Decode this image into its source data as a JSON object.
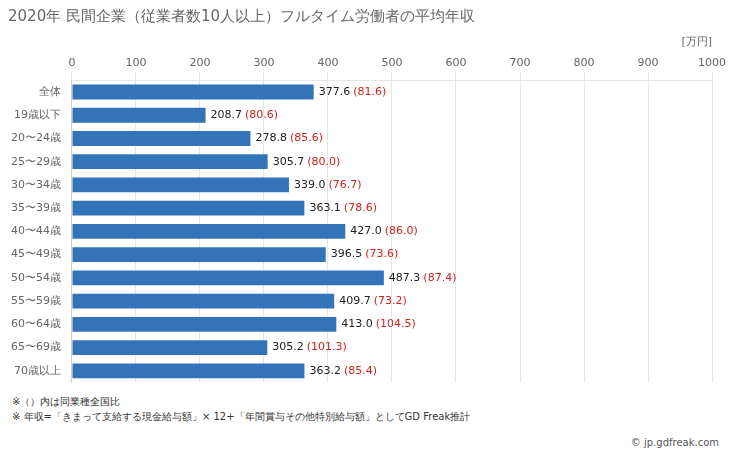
{
  "chart_data": {
    "type": "bar",
    "orientation": "horizontal",
    "title": "2020年 民間企業（従業者数10人以上）フルタイム労働者の平均年収",
    "xlabel": "[万円]",
    "categories": [
      "全体",
      "19歳以下",
      "20〜24歳",
      "25〜29歳",
      "30〜34歳",
      "35〜39歳",
      "40〜44歳",
      "45〜49歳",
      "50〜54歳",
      "55〜59歳",
      "60〜64歳",
      "65〜69歳",
      "70歳以上"
    ],
    "values": [
      377.6,
      208.7,
      278.8,
      305.7,
      339.0,
      363.1,
      427.0,
      396.5,
      487.3,
      409.7,
      413.0,
      305.2,
      363.2
    ],
    "value_labels": [
      "377.6",
      "208.7",
      "278.8",
      "305.7",
      "339.0",
      "363.1",
      "427.0",
      "396.5",
      "487.3",
      "409.7",
      "413.0",
      "305.2",
      "363.2"
    ],
    "data_labels": true,
    "ratios": {
      "color": "#cc2222",
      "values": [
        81.6,
        80.6,
        85.6,
        80.0,
        76.7,
        78.6,
        86.0,
        73.6,
        87.4,
        73.2,
        104.5,
        101.3,
        85.4
      ],
      "value_labels": [
        "(81.6)",
        "(80.6)",
        "(85.6)",
        "(80.0)",
        "(76.7)",
        "(78.6)",
        "(86.0)",
        "(73.6)",
        "(87.4)",
        "(73.2)",
        "(104.5)",
        "(101.3)",
        "(85.4)"
      ]
    },
    "color": "#3374b8",
    "xlim": [
      0,
      1000
    ],
    "xticks": [
      0,
      100,
      200,
      300,
      400,
      500,
      600,
      700,
      800,
      900,
      1000
    ],
    "grid": true,
    "notes": [
      "※（）内は同業種全国比",
      "※ 年収=「きまって支給する現金給与額」× 12+「年間賞与その他特別給与額」としてGD Freak推計"
    ],
    "watermark": "© jp.gdfreak.com"
  }
}
